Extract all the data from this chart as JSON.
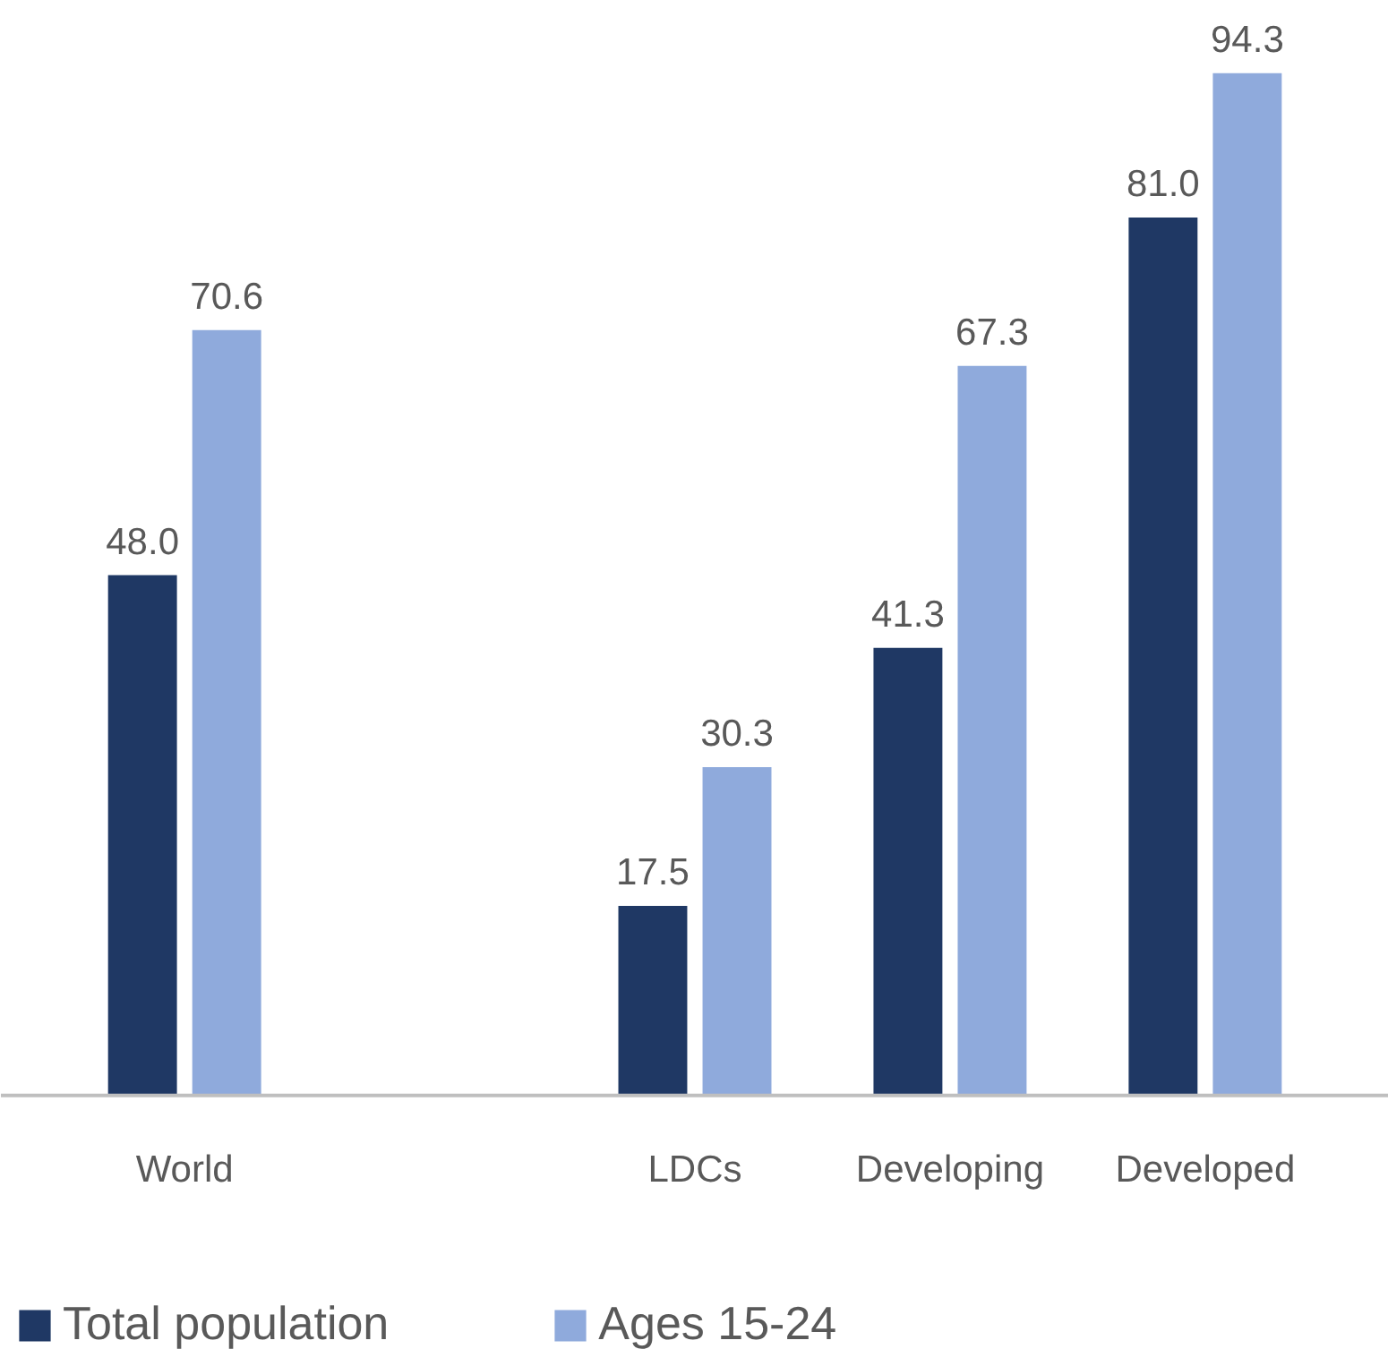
{
  "chart_data": {
    "type": "bar",
    "categories": [
      "World",
      null,
      "LDCs",
      "Developing",
      "Developed"
    ],
    "series": [
      {
        "name": "Total population",
        "color": "#1f3864",
        "values": [
          48.0,
          null,
          17.5,
          41.3,
          81.0
        ],
        "value_labels": [
          "48.0",
          null,
          "17.5",
          "41.3",
          "81.0"
        ]
      },
      {
        "name": "Ages 15-24",
        "color": "#8faadc",
        "values": [
          70.6,
          null,
          30.3,
          67.3,
          94.3
        ],
        "value_labels": [
          "70.6",
          null,
          "30.3",
          "67.3",
          "94.3"
        ]
      }
    ],
    "legend": "bottom"
  }
}
